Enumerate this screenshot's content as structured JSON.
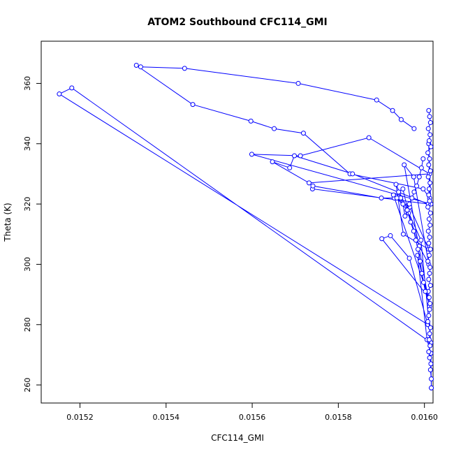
{
  "chart_data": {
    "type": "line",
    "title": "ATOM2 Southbound CFC114_GMI",
    "xlabel": "CFC114_GMI",
    "ylabel": "Theta (K)",
    "xlim": [
      0.01511,
      0.01602
    ],
    "ylim": [
      254,
      374
    ],
    "xticks": [
      "0.0152",
      "0.0154",
      "0.0156",
      "0.0158",
      "0.0160"
    ],
    "xtick_values": [
      0.0152,
      0.0154,
      0.0156,
      0.0158,
      0.016
    ],
    "yticks": [
      "260",
      "280",
      "300",
      "320",
      "340",
      "360"
    ],
    "ytick_values": [
      260,
      280,
      300,
      320,
      340,
      360
    ],
    "grid": false,
    "legend": "none",
    "series_color": "#0000ff",
    "series": [
      {
        "x": [
          0.015976,
          0.015946,
          0.015926,
          0.015889,
          0.015707,
          0.015443,
          0.015341,
          0.015331,
          0.015462,
          0.015597,
          0.015651,
          0.015719,
          0.015827,
          0.015997,
          0.016012,
          0.01601,
          0.016015,
          0.015599,
          0.015712,
          0.015871,
          0.016012,
          0.015732,
          0.015647,
          0.015687,
          0.015698,
          0.015833,
          0.016009,
          0.01574,
          0.015741,
          0.0159,
          0.01593,
          0.015966,
          0.01601,
          0.015951,
          0.015934,
          0.015992,
          0.016015,
          0.015181,
          0.015152,
          0.016008,
          0.015965,
          0.015921,
          0.015901,
          0.01601,
          0.015928,
          0.01595,
          0.015963,
          0.015988,
          0.01601,
          0.015975,
          0.015953,
          0.016012,
          0.015984,
          0.016006,
          0.016015,
          0.016016
        ],
        "y": [
          345,
          348,
          351,
          354.5,
          360,
          365,
          365.5,
          366,
          353,
          347.5,
          345,
          343.5,
          330,
          325,
          322,
          340,
          320,
          336.5,
          336,
          342,
          330,
          327,
          334,
          332,
          336,
          330,
          320,
          325,
          326,
          322,
          322,
          319,
          305,
          310,
          326.5,
          308,
          274,
          358.5,
          356.5,
          280,
          302,
          309.5,
          308.5,
          289,
          323,
          325,
          317,
          306,
          300,
          329,
          333,
          286,
          303,
          275,
          270.5,
          259
        ]
      },
      {
        "x": [
          0.01601,
          0.016012,
          0.016014,
          0.016009,
          0.016013,
          0.016011,
          0.016015,
          0.016008,
          0.016012,
          0.01601,
          0.016014,
          0.016009,
          0.016013,
          0.016011,
          0.01601,
          0.016012,
          0.016008,
          0.016014,
          0.016011,
          0.016013,
          0.016009,
          0.016012,
          0.01601,
          0.016014,
          0.016011,
          0.016008,
          0.016013,
          0.016012,
          0.01601,
          0.016014,
          0.016009,
          0.016011,
          0.016013,
          0.016012,
          0.01601,
          0.016008,
          0.016014,
          0.016012,
          0.016011,
          0.016013,
          0.01601,
          0.016012,
          0.016015,
          0.016014,
          0.016016,
          0.016016
        ],
        "y": [
          351,
          349,
          347,
          345,
          343,
          341,
          339,
          337,
          335,
          333,
          331,
          329,
          327,
          325,
          323,
          321,
          319,
          317,
          315,
          313,
          311,
          309,
          307,
          305,
          303,
          301,
          299,
          297,
          295,
          293,
          291,
          289,
          287,
          285,
          283,
          281,
          279,
          277,
          275,
          273,
          271,
          269,
          267,
          265,
          262,
          259
        ]
      },
      {
        "x": [
          0.015997,
          0.015993,
          0.015988,
          0.015982,
          0.015976,
          0.015971,
          0.015965,
          0.01596,
          0.015955,
          0.01595,
          0.015945,
          0.01594,
          0.015936,
          0.01596,
          0.015968,
          0.015975,
          0.01598,
          0.015985,
          0.01599,
          0.015994,
          0.015998,
          0.016002
        ],
        "y": [
          335,
          332,
          329,
          326,
          324,
          322,
          320,
          318,
          316,
          320,
          322,
          324,
          322,
          318,
          314,
          311,
          308,
          305,
          301,
          297,
          294,
          291
        ]
      }
    ]
  }
}
